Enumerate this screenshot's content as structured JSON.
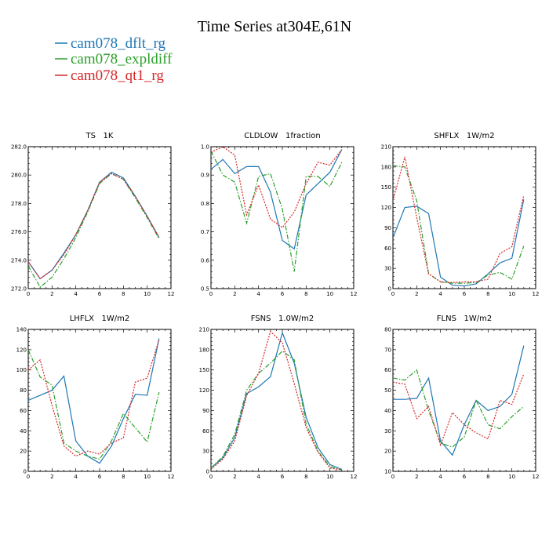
{
  "figure": {
    "title": "Time Series at304E,61N",
    "legend": [
      {
        "label": "cam078_dflt_rg",
        "color": "#1f77b4",
        "dash": "solid"
      },
      {
        "label": "cam078_expldiff",
        "color": "#2ca02c",
        "dash": "dashdot"
      },
      {
        "label": "cam078_qt1_rg",
        "color": "#d62728",
        "dash": "dotted"
      }
    ]
  },
  "chart_data": [
    {
      "type": "line",
      "title": "TS   1K",
      "xlim": [
        0,
        12
      ],
      "xticks": [
        0,
        2,
        4,
        6,
        8,
        10,
        12
      ],
      "ylim": [
        272,
        282
      ],
      "yticks": [
        "272.0",
        "274.0",
        "276.0",
        "278.0",
        "280.0",
        "282.0"
      ],
      "x": [
        0,
        1,
        2,
        3,
        4,
        5,
        6,
        7,
        8,
        9,
        10,
        11
      ],
      "series": [
        {
          "name": "cam078_dflt_rg",
          "values": [
            273.9,
            272.7,
            273.3,
            274.5,
            275.8,
            277.5,
            279.5,
            280.2,
            279.8,
            278.5,
            277.1,
            275.6
          ]
        },
        {
          "name": "cam078_expldiff",
          "values": [
            273.6,
            272.1,
            272.8,
            274.1,
            275.6,
            277.4,
            279.4,
            280.1,
            279.7,
            278.4,
            277.0,
            275.5
          ]
        },
        {
          "name": "cam078_qt1_rg",
          "values": [
            273.9,
            272.7,
            273.3,
            274.4,
            275.8,
            277.5,
            279.5,
            280.1,
            279.7,
            278.5,
            277.1,
            275.6
          ]
        }
      ]
    },
    {
      "type": "line",
      "title": "CLDLOW   1fraction",
      "xlim": [
        0,
        12
      ],
      "xticks": [
        0,
        2,
        4,
        6,
        8,
        10,
        12
      ],
      "ylim": [
        0.5,
        1.0
      ],
      "yticks": [
        "0.5",
        "0.6",
        "0.7",
        "0.8",
        "0.9",
        "1.0"
      ],
      "x": [
        0,
        1,
        2,
        3,
        4,
        5,
        6,
        7,
        8,
        9,
        10,
        11
      ],
      "series": [
        {
          "name": "cam078_dflt_rg",
          "values": [
            0.92,
            0.955,
            0.905,
            0.93,
            0.93,
            0.84,
            0.67,
            0.64,
            0.83,
            0.87,
            0.91,
            0.99
          ]
        },
        {
          "name": "cam078_expldiff",
          "values": [
            0.985,
            0.9,
            0.875,
            0.73,
            0.895,
            0.905,
            0.78,
            0.56,
            0.895,
            0.895,
            0.86,
            0.945
          ]
        },
        {
          "name": "cam078_qt1_rg",
          "values": [
            0.98,
            1.0,
            0.97,
            0.76,
            0.865,
            0.745,
            0.715,
            0.77,
            0.87,
            0.945,
            0.935,
            0.99
          ]
        }
      ]
    },
    {
      "type": "line",
      "title": "SHFLX   1W/m2",
      "xlim": [
        0,
        12
      ],
      "xticks": [
        0,
        2,
        4,
        6,
        8,
        10,
        12
      ],
      "ylim": [
        0,
        210
      ],
      "yticks": [
        "0",
        "30",
        "60",
        "90",
        "120",
        "150",
        "180",
        "210"
      ],
      "x": [
        0,
        1,
        2,
        3,
        4,
        5,
        6,
        7,
        8,
        9,
        10,
        11
      ],
      "series": [
        {
          "name": "cam078_dflt_rg",
          "values": [
            75,
            120,
            122,
            111,
            17,
            5,
            4,
            7,
            22,
            38,
            45,
            132
          ]
        },
        {
          "name": "cam078_expldiff",
          "values": [
            182,
            180,
            130,
            22,
            10,
            8,
            8,
            9,
            20,
            24,
            14,
            63
          ]
        },
        {
          "name": "cam078_qt1_rg",
          "values": [
            130,
            195,
            105,
            22,
            10,
            9,
            10,
            10,
            14,
            52,
            62,
            138
          ]
        }
      ]
    },
    {
      "type": "line",
      "title": "LHFLX   1W/m2",
      "xlim": [
        0,
        12
      ],
      "xticks": [
        0,
        2,
        4,
        6,
        8,
        10,
        12
      ],
      "ylim": [
        0,
        140
      ],
      "yticks": [
        "0",
        "20",
        "40",
        "60",
        "80",
        "100",
        "120",
        "140"
      ],
      "x": [
        0,
        1,
        2,
        3,
        4,
        5,
        6,
        7,
        8,
        9,
        10,
        11
      ],
      "series": [
        {
          "name": "cam078_dflt_rg",
          "values": [
            70,
            75,
            80,
            94,
            30,
            15,
            8,
            25,
            52,
            76,
            75,
            131
          ]
        },
        {
          "name": "cam078_expldiff",
          "values": [
            120,
            93,
            85,
            28,
            20,
            15,
            12,
            30,
            57,
            43,
            29,
            78
          ]
        },
        {
          "name": "cam078_qt1_rg",
          "values": [
            100,
            110,
            65,
            25,
            15,
            20,
            17,
            28,
            33,
            88,
            92,
            130
          ]
        }
      ]
    },
    {
      "type": "line",
      "title": "FSNS   1.0W/m2",
      "xlim": [
        0,
        12
      ],
      "xticks": [
        0,
        2,
        4,
        6,
        8,
        10,
        12
      ],
      "ylim": [
        0,
        210
      ],
      "yticks": [
        "0",
        "30",
        "60",
        "90",
        "120",
        "150",
        "180",
        "210"
      ],
      "x": [
        0,
        1,
        2,
        3,
        4,
        5,
        6,
        7,
        8,
        9,
        10,
        11
      ],
      "series": [
        {
          "name": "cam078_dflt_rg",
          "values": [
            5,
            20,
            50,
            115,
            125,
            140,
            205,
            160,
            80,
            35,
            10,
            3
          ]
        },
        {
          "name": "cam078_expldiff",
          "values": [
            5,
            22,
            55,
            120,
            145,
            160,
            178,
            165,
            70,
            30,
            7,
            2
          ]
        },
        {
          "name": "cam078_qt1_rg",
          "values": [
            3,
            18,
            45,
            112,
            145,
            207,
            190,
            130,
            65,
            28,
            5,
            2
          ]
        }
      ]
    },
    {
      "type": "line",
      "title": "FLNS   1W/m2",
      "xlim": [
        0,
        12
      ],
      "xticks": [
        0,
        2,
        4,
        6,
        8,
        10,
        12
      ],
      "ylim": [
        10,
        80
      ],
      "yticks": [
        "10",
        "20",
        "30",
        "40",
        "50",
        "60",
        "70",
        "80"
      ],
      "x": [
        0,
        1,
        2,
        3,
        4,
        5,
        6,
        7,
        8,
        9,
        10,
        11
      ],
      "series": [
        {
          "name": "cam078_dflt_rg",
          "values": [
            45.5,
            45.5,
            46,
            56,
            25,
            18,
            33,
            45,
            40,
            42,
            48,
            72
          ]
        },
        {
          "name": "cam078_expldiff",
          "values": [
            56,
            55,
            60,
            40,
            24,
            22,
            27,
            45,
            33,
            31,
            37,
            42
          ]
        },
        {
          "name": "cam078_qt1_rg",
          "values": [
            54,
            53,
            36,
            42,
            23,
            39,
            33,
            29,
            26,
            45,
            43,
            58
          ]
        }
      ]
    }
  ]
}
